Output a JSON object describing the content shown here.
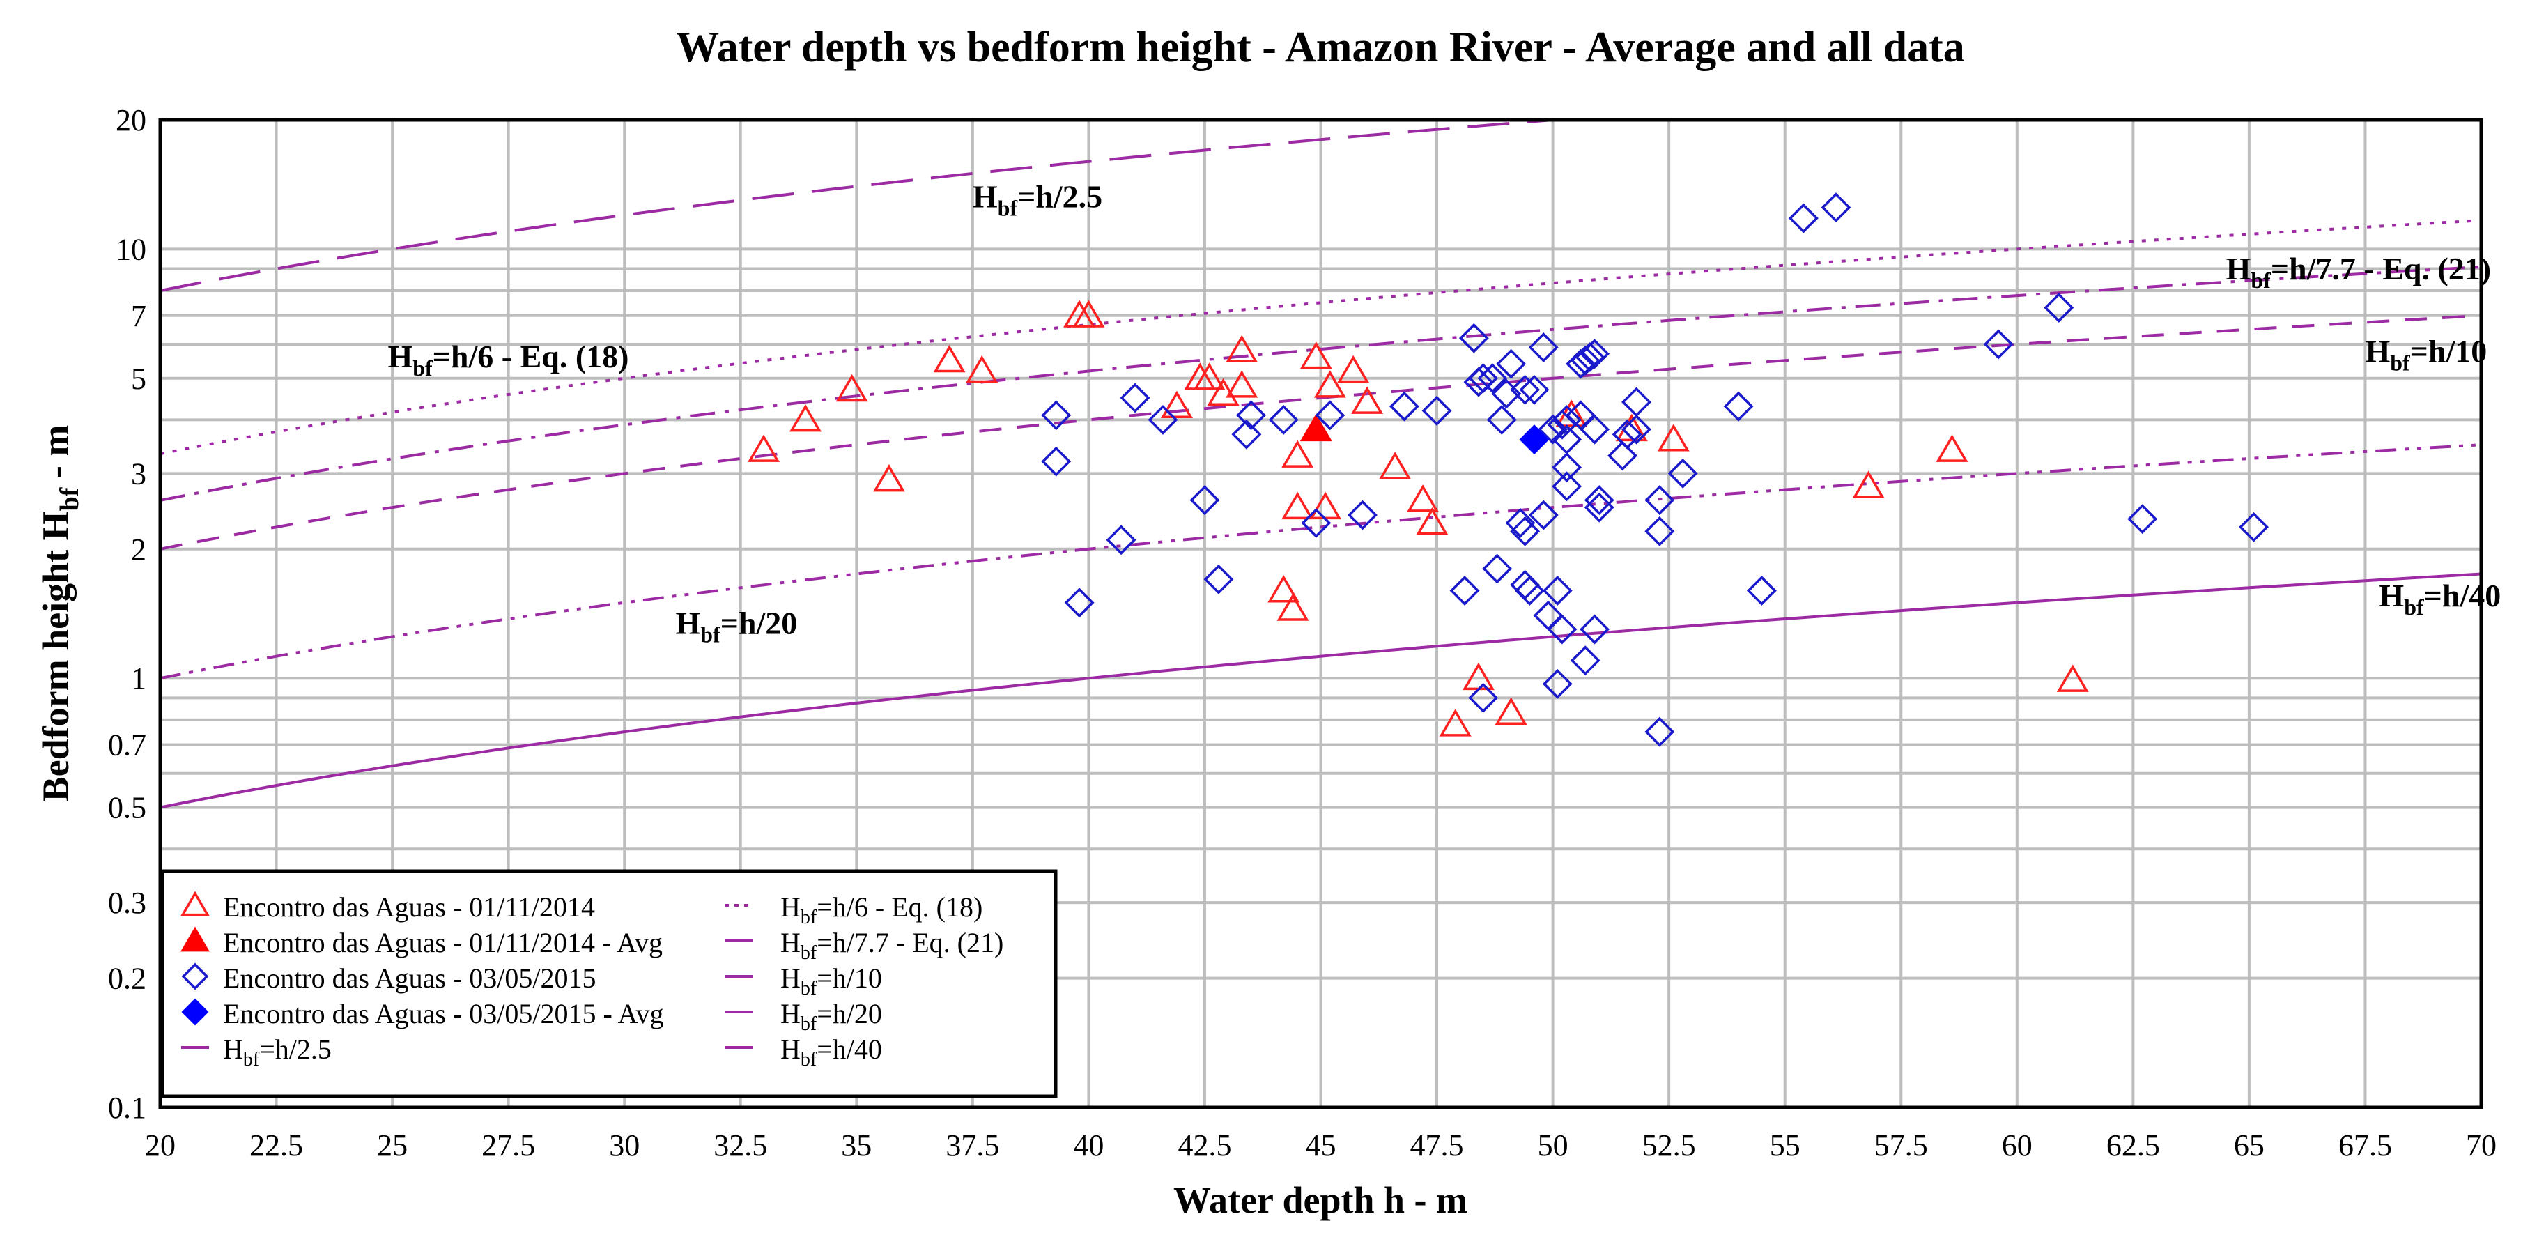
{
  "chart_data": {
    "type": "scatter",
    "title": "Water depth vs bedform height - Amazon River - Average and all data",
    "xlabel": "Water depth h - m",
    "ylabel_main": "Bedform height H",
    "ylabel_sub": "bf",
    "ylabel_tail": " - m",
    "xlim": [
      20,
      70
    ],
    "ylim": [
      0.1,
      20
    ],
    "yscale": "log",
    "grid": true,
    "legend_position": "bottom-left",
    "x_ticks": [
      20,
      22.5,
      25,
      27.5,
      30,
      32.5,
      35,
      37.5,
      40,
      42.5,
      45,
      47.5,
      50,
      52.5,
      55,
      57.5,
      60,
      62.5,
      65,
      67.5,
      70
    ],
    "x_tick_labels": [
      "20",
      "22.5",
      "25",
      "27.5",
      "30",
      "32.5",
      "35",
      "37.5",
      "40",
      "42.5",
      "45",
      "47.5",
      "50",
      "52.5",
      "55",
      "57.5",
      "60",
      "62.5",
      "65",
      "67.5",
      "70"
    ],
    "y_ticks": [
      0.1,
      0.2,
      0.3,
      0.5,
      0.7,
      1,
      2,
      3,
      5,
      7,
      10,
      20
    ],
    "y_tick_labels": [
      "0.1",
      "0.2",
      "0.3",
      "0.5",
      "0.7",
      "1",
      "2",
      "3",
      "5",
      "7",
      "10",
      "20"
    ],
    "y_minor_grid": [
      0.4,
      0.6,
      0.8,
      0.9,
      4,
      6,
      8,
      9
    ],
    "lines": [
      {
        "name": "h/2.5",
        "legend": "=h/2.5",
        "divisor": 2.5,
        "dash": "long",
        "color": "#9b2aa3",
        "label_main": "H",
        "label_sub": "bf",
        "label_tail": "=h/2.5",
        "label_x": 37.5,
        "label_y": 12.5
      },
      {
        "name": "h/6",
        "legend": "=h/6 - Eq. (18)",
        "divisor": 6,
        "dash": "dot",
        "color": "#9b2aa3",
        "label_main": "H",
        "label_sub": "bf",
        "label_tail": "=h/6 - Eq. (18)",
        "label_x": 24.9,
        "label_y": 5.3
      },
      {
        "name": "h/7.7",
        "legend": "=h/7.7 - Eq. (21)",
        "divisor": 7.7,
        "dash": "dashdot",
        "color": "#9b2aa3",
        "label_main": "H",
        "label_sub": "bf",
        "label_tail": "=h/7.7 - Eq. (21)",
        "label_x": 64.5,
        "label_y": 8.5
      },
      {
        "name": "h/10",
        "legend": "=h/10",
        "divisor": 10,
        "dash": "dash",
        "color": "#9b2aa3",
        "label_main": "H",
        "label_sub": "bf",
        "label_tail": "=h/10",
        "label_x": 67.5,
        "label_y": 5.45
      },
      {
        "name": "h/20",
        "legend": "=h/20",
        "divisor": 20,
        "dash": "dashdotdot",
        "color": "#9b2aa3",
        "label_main": "H",
        "label_sub": "bf",
        "label_tail": "=h/20",
        "label_x": 31.1,
        "label_y": 1.27
      },
      {
        "name": "h/40",
        "legend": "=h/40",
        "divisor": 40,
        "dash": "solid",
        "color": "#9b2aa3",
        "label_main": "H",
        "label_sub": "bf",
        "label_tail": "=h/40",
        "label_x": 67.8,
        "label_y": 1.47
      }
    ],
    "series": [
      {
        "name": "Encontro das Aguas - 01/11/2014",
        "marker": "triangle-open",
        "color": "#ff2020",
        "points": [
          [
            33,
            3.4
          ],
          [
            33.9,
            4
          ],
          [
            34.9,
            4.7
          ],
          [
            35.7,
            2.9
          ],
          [
            37,
            5.5
          ],
          [
            37.7,
            5.2
          ],
          [
            39.8,
            7
          ],
          [
            40,
            7
          ],
          [
            41.9,
            4.3
          ],
          [
            42.4,
            5
          ],
          [
            42.6,
            5
          ],
          [
            42.9,
            4.6
          ],
          [
            43.3,
            5.8
          ],
          [
            43.3,
            4.8
          ],
          [
            44.2,
            1.6
          ],
          [
            44.4,
            1.45
          ],
          [
            44.5,
            3.3
          ],
          [
            44.5,
            2.5
          ],
          [
            44.9,
            5.6
          ],
          [
            45.1,
            2.5
          ],
          [
            45.2,
            4.8
          ],
          [
            45.7,
            5.2
          ],
          [
            46,
            4.4
          ],
          [
            46.6,
            3.1
          ],
          [
            47.2,
            2.6
          ],
          [
            47.4,
            2.3
          ],
          [
            47.9,
            0.78
          ],
          [
            48.4,
            1
          ],
          [
            49.1,
            0.83
          ],
          [
            50.4,
            4.1
          ],
          [
            51.7,
            3.8
          ],
          [
            52.6,
            3.6
          ],
          [
            56.8,
            2.8
          ],
          [
            58.6,
            3.4
          ],
          [
            61.2,
            0.99
          ]
        ]
      },
      {
        "name": "Encontro das Aguas - 01/11/2014 - Avg",
        "marker": "triangle-filled",
        "color": "#ff0000",
        "points": [
          [
            44.9,
            3.8
          ]
        ]
      },
      {
        "name": "Encontro das Aguas - 03/05/2015",
        "marker": "diamond-open",
        "color": "#1a1acc",
        "points": [
          [
            39.3,
            4.1
          ],
          [
            39.3,
            3.2
          ],
          [
            39.8,
            1.5
          ],
          [
            40.7,
            2.1
          ],
          [
            41,
            4.5
          ],
          [
            41.6,
            4
          ],
          [
            42.5,
            2.6
          ],
          [
            42.8,
            1.7
          ],
          [
            43.4,
            3.7
          ],
          [
            43.5,
            4.1
          ],
          [
            44.2,
            4
          ],
          [
            44.9,
            2.3
          ],
          [
            45.2,
            4.1
          ],
          [
            45.9,
            2.4
          ],
          [
            46.8,
            4.3
          ],
          [
            47.5,
            4.2
          ],
          [
            48.1,
            1.6
          ],
          [
            48.3,
            6.2
          ],
          [
            48.4,
            4.9
          ],
          [
            48.5,
            5
          ],
          [
            48.5,
            0.9
          ],
          [
            48.7,
            5
          ],
          [
            48.8,
            1.8
          ],
          [
            48.9,
            4
          ],
          [
            49,
            4.6
          ],
          [
            49.1,
            5.4
          ],
          [
            49.3,
            2.3
          ],
          [
            49.4,
            4.7
          ],
          [
            49.4,
            2.2
          ],
          [
            49.4,
            1.65
          ],
          [
            49.5,
            1.6
          ],
          [
            49.6,
            4.7
          ],
          [
            49.8,
            5.9
          ],
          [
            49.8,
            2.4
          ],
          [
            49.9,
            1.4
          ],
          [
            50,
            3.8
          ],
          [
            50.1,
            1.6
          ],
          [
            50.1,
            0.97
          ],
          [
            50.2,
            3.9
          ],
          [
            50.2,
            1.3
          ],
          [
            50.3,
            4
          ],
          [
            50.3,
            3.6
          ],
          [
            50.3,
            3.1
          ],
          [
            50.3,
            2.8
          ],
          [
            50.6,
            5.4
          ],
          [
            50.6,
            4.1
          ],
          [
            50.7,
            5.5
          ],
          [
            50.7,
            1.1
          ],
          [
            50.8,
            5.6
          ],
          [
            50.9,
            5.7
          ],
          [
            50.9,
            3.8
          ],
          [
            50.9,
            1.3
          ],
          [
            51,
            2.6
          ],
          [
            51,
            2.5
          ],
          [
            51.5,
            3.3
          ],
          [
            51.6,
            3.7
          ],
          [
            51.8,
            3.8
          ],
          [
            51.8,
            4.4
          ],
          [
            52.3,
            2.2
          ],
          [
            52.3,
            0.75
          ],
          [
            52.3,
            2.6
          ],
          [
            52.8,
            3
          ],
          [
            54,
            4.3
          ],
          [
            54.5,
            1.6
          ],
          [
            55.4,
            11.8
          ],
          [
            56.1,
            12.5
          ],
          [
            59.6,
            6
          ],
          [
            60.9,
            7.3
          ],
          [
            62.7,
            2.35
          ],
          [
            65.1,
            2.25
          ]
        ]
      },
      {
        "name": "Encontro das Aguas - 03/05/2015 - Avg",
        "marker": "diamond-filled",
        "color": "#0000ff",
        "points": [
          [
            49.6,
            3.6
          ]
        ]
      }
    ],
    "legend_entries": [
      {
        "text": "Encontro das Aguas - 01/11/2014",
        "marker": "triangle-open",
        "color": "#ff2020"
      },
      {
        "text": "Encontro das Aguas - 01/11/2014 - Avg",
        "marker": "triangle-filled",
        "color": "#ff0000"
      },
      {
        "text": "Encontro das Aguas - 03/05/2015",
        "marker": "diamond-open",
        "color": "#1a1acc"
      },
      {
        "text": "Encontro das Aguas - 03/05/2015 - Avg",
        "marker": "diamond-filled",
        "color": "#0000ff"
      },
      {
        "text_main": "H",
        "text_sub": "bf",
        "text_tail": "=h/2.5",
        "line": "h/2.5"
      },
      {
        "text_main": "H",
        "text_sub": "bf",
        "text_tail": "=h/6 - Eq. (18)",
        "line": "h/6"
      },
      {
        "text_main": "H",
        "text_sub": "bf",
        "text_tail": "=h/7.7 - Eq. (21)",
        "line": "h/7.7"
      },
      {
        "text_main": "H",
        "text_sub": "bf",
        "text_tail": "=h/10",
        "line": "h/10"
      },
      {
        "text_main": "H",
        "text_sub": "bf",
        "text_tail": "=h/20",
        "line": "h/20"
      },
      {
        "text_main": "H",
        "text_sub": "bf",
        "text_tail": "=h/40",
        "line": "h/40"
      }
    ]
  }
}
